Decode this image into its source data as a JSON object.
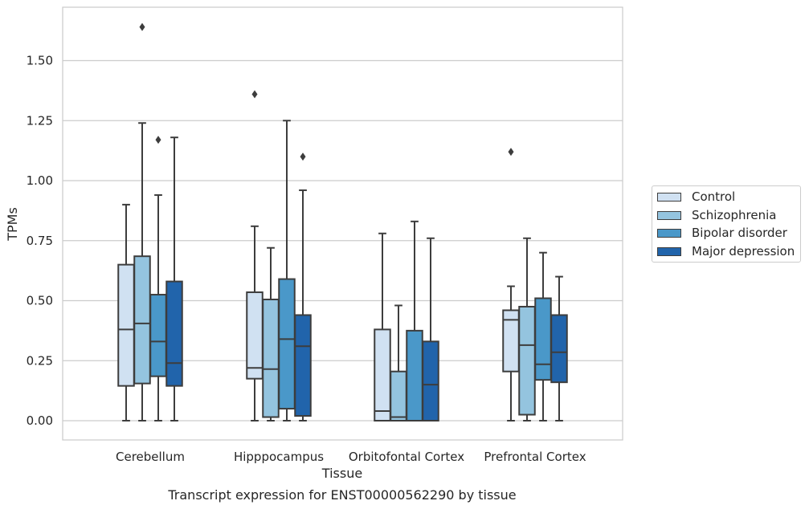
{
  "chart_data": {
    "type": "box",
    "title": "Transcript expression for ENST00000562290 by tissue",
    "xlabel": "Tissue",
    "ylabel": "TPMs",
    "ylim": [
      -0.08,
      1.73
    ],
    "yticks": [
      "0.00",
      "0.25",
      "0.50",
      "0.75",
      "1.00",
      "1.25",
      "1.50"
    ],
    "ytick_values": [
      0,
      0.25,
      0.5,
      0.75,
      1.0,
      1.25,
      1.5
    ],
    "grid": true,
    "legend_position": "right",
    "categories": [
      "Cerebellum",
      "Hipppocampus",
      "Orbitofontal Cortex",
      "Prefrontal Cortex"
    ],
    "series": [
      {
        "name": "Control",
        "color": "#d0e1f2",
        "boxes": [
          {
            "whisker_low": 0.0,
            "q1": 0.145,
            "median": 0.38,
            "q3": 0.65,
            "whisker_high": 0.9,
            "outliers": []
          },
          {
            "whisker_low": 0.0,
            "q1": 0.175,
            "median": 0.22,
            "q3": 0.535,
            "whisker_high": 0.81,
            "outliers": [
              1.36
            ]
          },
          {
            "whisker_low": 0.0,
            "q1": 0.0,
            "median": 0.04,
            "q3": 0.38,
            "whisker_high": 0.78,
            "outliers": []
          },
          {
            "whisker_low": 0.0,
            "q1": 0.205,
            "median": 0.42,
            "q3": 0.46,
            "whisker_high": 0.56,
            "outliers": [
              1.12
            ]
          }
        ]
      },
      {
        "name": "Schizophrenia",
        "color": "#94c4df",
        "boxes": [
          {
            "whisker_low": 0.0,
            "q1": 0.155,
            "median": 0.405,
            "q3": 0.685,
            "whisker_high": 1.24,
            "outliers": [
              1.64
            ]
          },
          {
            "whisker_low": 0.0,
            "q1": 0.015,
            "median": 0.215,
            "q3": 0.505,
            "whisker_high": 0.72,
            "outliers": []
          },
          {
            "whisker_low": 0.0,
            "q1": 0.0,
            "median": 0.015,
            "q3": 0.205,
            "whisker_high": 0.48,
            "outliers": []
          },
          {
            "whisker_low": 0.0,
            "q1": 0.025,
            "median": 0.315,
            "q3": 0.475,
            "whisker_high": 0.76,
            "outliers": []
          }
        ]
      },
      {
        "name": "Bipolar disorder",
        "color": "#4a98c9",
        "boxes": [
          {
            "whisker_low": 0.0,
            "q1": 0.185,
            "median": 0.33,
            "q3": 0.525,
            "whisker_high": 0.94,
            "outliers": [
              1.17
            ]
          },
          {
            "whisker_low": 0.0,
            "q1": 0.05,
            "median": 0.34,
            "q3": 0.59,
            "whisker_high": 1.25,
            "outliers": []
          },
          {
            "whisker_low": 0.0,
            "q1": 0.0,
            "median": 0.0,
            "q3": 0.375,
            "whisker_high": 0.83,
            "outliers": []
          },
          {
            "whisker_low": 0.0,
            "q1": 0.17,
            "median": 0.235,
            "q3": 0.51,
            "whisker_high": 0.7,
            "outliers": []
          }
        ]
      },
      {
        "name": "Major depression",
        "color": "#2164ab",
        "boxes": [
          {
            "whisker_low": 0.0,
            "q1": 0.145,
            "median": 0.24,
            "q3": 0.58,
            "whisker_high": 1.18,
            "outliers": []
          },
          {
            "whisker_low": 0.0,
            "q1": 0.02,
            "median": 0.31,
            "q3": 0.44,
            "whisker_high": 0.96,
            "outliers": [
              1.1
            ]
          },
          {
            "whisker_low": 0.0,
            "q1": 0.0,
            "median": 0.15,
            "q3": 0.33,
            "whisker_high": 0.76,
            "outliers": []
          },
          {
            "whisker_low": 0.0,
            "q1": 0.16,
            "median": 0.285,
            "q3": 0.44,
            "whisker_high": 0.6,
            "outliers": []
          }
        ]
      }
    ]
  }
}
